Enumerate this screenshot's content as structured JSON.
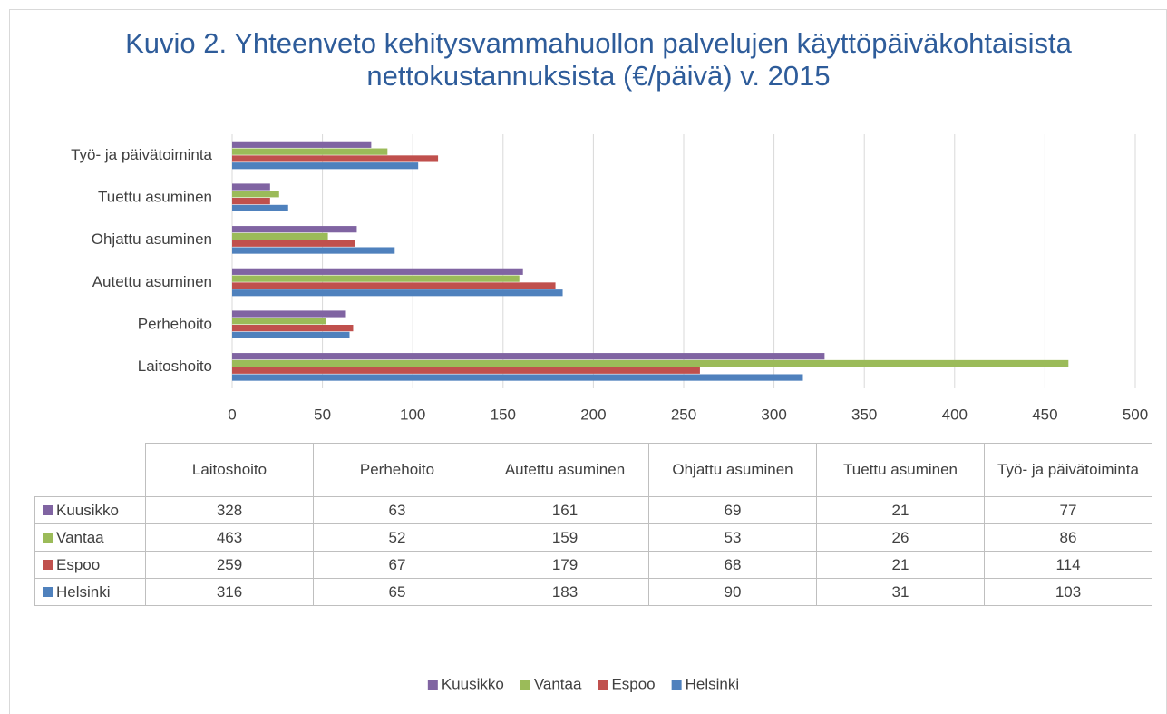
{
  "chart_data": {
    "type": "hbar",
    "title": "Kuvio 2. Yhteenveto kehitysvammahuollon palvelujen käyttöpäiväkohtaisista nettokustannuksista (€/päivä) v. 2015",
    "categories": [
      "Laitoshoito",
      "Perhehoito",
      "Autettu asuminen",
      "Ohjattu asuminen",
      "Tuettu asuminen",
      "Työ- ja päivätoiminta"
    ],
    "series": [
      {
        "name": "Kuusikko",
        "color": "#8064a2",
        "values": [
          328,
          63,
          161,
          69,
          21,
          77
        ]
      },
      {
        "name": "Vantaa",
        "color": "#9bbb59",
        "values": [
          463,
          52,
          159,
          53,
          26,
          86
        ]
      },
      {
        "name": "Espoo",
        "color": "#c0504d",
        "values": [
          259,
          67,
          179,
          68,
          21,
          114
        ]
      },
      {
        "name": "Helsinki",
        "color": "#4f81bd",
        "values": [
          316,
          65,
          183,
          90,
          31,
          103
        ]
      }
    ],
    "xlim": [
      0,
      500
    ],
    "xticks": [
      0,
      50,
      100,
      150,
      200,
      250,
      300,
      350,
      400,
      450,
      500
    ],
    "grid": true,
    "legend": "bottom",
    "data_table": true
  }
}
